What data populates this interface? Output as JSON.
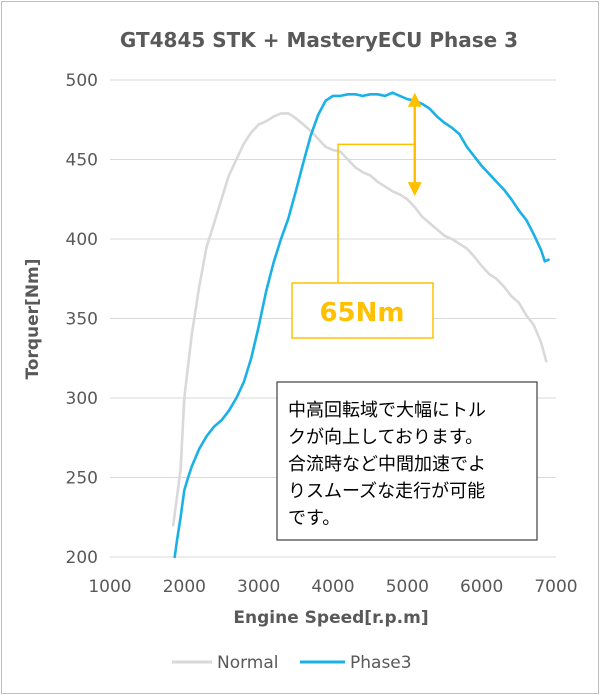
{
  "chart_data": {
    "type": "line",
    "title": "GT4845 STK + MasteryECU Phase 3",
    "xlabel": "Engine Speed[r.p.m]",
    "ylabel": "Torquer[Nm]",
    "xlim": [
      1000,
      7000
    ],
    "ylim": [
      200,
      500
    ],
    "x_ticks": [
      "1000",
      "2000",
      "3000",
      "4000",
      "5000",
      "6000",
      "7000"
    ],
    "y_ticks": [
      "200",
      "250",
      "300",
      "350",
      "400",
      "450",
      "500"
    ],
    "grid": "horizontal",
    "legend_position": "bottom",
    "series": [
      {
        "name": "Normal",
        "color": "#d9d9d9",
        "points": [
          [
            1850,
            220
          ],
          [
            1950,
            255
          ],
          [
            2000,
            300
          ],
          [
            2100,
            340
          ],
          [
            2200,
            370
          ],
          [
            2300,
            395
          ],
          [
            2400,
            410
          ],
          [
            2500,
            425
          ],
          [
            2600,
            440
          ],
          [
            2700,
            450
          ],
          [
            2800,
            460
          ],
          [
            2900,
            467
          ],
          [
            3000,
            472
          ],
          [
            3100,
            474
          ],
          [
            3200,
            477
          ],
          [
            3300,
            479
          ],
          [
            3400,
            479
          ],
          [
            3500,
            476
          ],
          [
            3600,
            472
          ],
          [
            3700,
            468
          ],
          [
            3800,
            463
          ],
          [
            3900,
            458
          ],
          [
            4000,
            456
          ],
          [
            4100,
            455
          ],
          [
            4200,
            450
          ],
          [
            4300,
            445
          ],
          [
            4400,
            442
          ],
          [
            4500,
            440
          ],
          [
            4600,
            436
          ],
          [
            4700,
            433
          ],
          [
            4800,
            430
          ],
          [
            4900,
            428
          ],
          [
            5000,
            425
          ],
          [
            5100,
            420
          ],
          [
            5200,
            414
          ],
          [
            5300,
            410
          ],
          [
            5400,
            406
          ],
          [
            5500,
            402
          ],
          [
            5600,
            400
          ],
          [
            5700,
            397
          ],
          [
            5800,
            394
          ],
          [
            5900,
            389
          ],
          [
            6000,
            383
          ],
          [
            6100,
            378
          ],
          [
            6200,
            375
          ],
          [
            6300,
            370
          ],
          [
            6400,
            364
          ],
          [
            6500,
            360
          ],
          [
            6600,
            352
          ],
          [
            6700,
            346
          ],
          [
            6800,
            335
          ],
          [
            6870,
            323
          ]
        ]
      },
      {
        "name": "Phase3",
        "color": "#1bb0e6",
        "points": [
          [
            1870,
            200
          ],
          [
            1900,
            210
          ],
          [
            1950,
            225
          ],
          [
            2000,
            242
          ],
          [
            2050,
            250
          ],
          [
            2100,
            257
          ],
          [
            2200,
            268
          ],
          [
            2300,
            276
          ],
          [
            2400,
            282
          ],
          [
            2500,
            286
          ],
          [
            2600,
            292
          ],
          [
            2700,
            300
          ],
          [
            2800,
            310
          ],
          [
            2900,
            325
          ],
          [
            3000,
            345
          ],
          [
            3100,
            367
          ],
          [
            3200,
            385
          ],
          [
            3300,
            400
          ],
          [
            3400,
            413
          ],
          [
            3500,
            430
          ],
          [
            3600,
            448
          ],
          [
            3700,
            465
          ],
          [
            3800,
            478
          ],
          [
            3900,
            487
          ],
          [
            4000,
            490
          ],
          [
            4100,
            490
          ],
          [
            4200,
            491
          ],
          [
            4300,
            491
          ],
          [
            4400,
            490
          ],
          [
            4500,
            491
          ],
          [
            4600,
            491
          ],
          [
            4700,
            490
          ],
          [
            4800,
            492
          ],
          [
            4900,
            490
          ],
          [
            5000,
            488
          ],
          [
            5100,
            487
          ],
          [
            5200,
            485
          ],
          [
            5300,
            482
          ],
          [
            5400,
            477
          ],
          [
            5500,
            473
          ],
          [
            5600,
            470
          ],
          [
            5700,
            466
          ],
          [
            5800,
            458
          ],
          [
            5900,
            452
          ],
          [
            6000,
            446
          ],
          [
            6100,
            441
          ],
          [
            6200,
            436
          ],
          [
            6300,
            431
          ],
          [
            6400,
            425
          ],
          [
            6500,
            418
          ],
          [
            6600,
            412
          ],
          [
            6700,
            403
          ],
          [
            6800,
            393
          ],
          [
            6850,
            386
          ],
          [
            6900,
            387
          ]
        ]
      }
    ],
    "annotations": {
      "delta_label": "65Nm",
      "delta_x": 5100,
      "delta_from": 427,
      "delta_to": 492,
      "note_lines": [
        "中高回転域で大幅にトル",
        "クが向上しております。",
        "合流時など中間加速でよ",
        "りスムーズな走行が可能",
        "です。"
      ]
    }
  }
}
